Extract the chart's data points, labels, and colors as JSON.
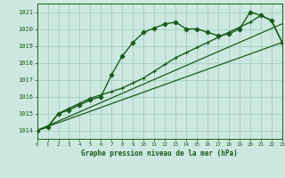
{
  "title": "Graphe pression niveau de la mer (hPa)",
  "background_color": "#cce8e0",
  "grid_color": "#99ccbb",
  "line_color": "#1a5c1a",
  "xlim": [
    0,
    23
  ],
  "ylim": [
    1013.5,
    1021.5
  ],
  "yticks": [
    1014,
    1015,
    1016,
    1017,
    1018,
    1019,
    1020,
    1021
  ],
  "xticks": [
    0,
    1,
    2,
    3,
    4,
    5,
    6,
    7,
    8,
    9,
    10,
    11,
    12,
    13,
    14,
    15,
    16,
    17,
    18,
    19,
    20,
    21,
    22,
    23
  ],
  "series": [
    {
      "x": [
        0,
        1,
        2,
        3,
        4,
        5,
        6,
        7,
        8,
        9,
        10,
        11,
        12,
        13,
        14,
        15,
        16,
        17,
        18,
        19,
        20,
        21,
        22,
        23
      ],
      "y": [
        1014.0,
        1014.2,
        1015.0,
        1015.2,
        1015.5,
        1015.8,
        1016.0,
        1017.3,
        1018.4,
        1019.2,
        1019.8,
        1020.05,
        1020.3,
        1020.4,
        1020.0,
        1020.0,
        1019.8,
        1019.6,
        1019.7,
        1020.0,
        1021.0,
        1020.8,
        1020.5,
        1019.2
      ],
      "marker": "D",
      "markersize": 2.5,
      "linewidth": 1.0
    },
    {
      "x": [
        0,
        1,
        2,
        3,
        4,
        5,
        6,
        7,
        8,
        9,
        10,
        11,
        12,
        13,
        14,
        15,
        16,
        17,
        18,
        19,
        20,
        21,
        22,
        23
      ],
      "y": [
        1014.0,
        1014.2,
        1015.0,
        1015.3,
        1015.6,
        1015.9,
        1016.1,
        1016.3,
        1016.5,
        1016.8,
        1017.1,
        1017.5,
        1017.9,
        1018.3,
        1018.6,
        1018.9,
        1019.2,
        1019.5,
        1019.8,
        1020.1,
        1020.4,
        1020.8,
        1020.5,
        1019.2
      ],
      "marker": "P",
      "markersize": 2.5,
      "linewidth": 1.0
    },
    {
      "x": [
        0,
        23
      ],
      "y": [
        1014.0,
        1020.3
      ],
      "marker": "None",
      "markersize": 0,
      "linewidth": 0.9
    },
    {
      "x": [
        0,
        23
      ],
      "y": [
        1014.0,
        1019.2
      ],
      "marker": "None",
      "markersize": 0,
      "linewidth": 0.9
    }
  ]
}
